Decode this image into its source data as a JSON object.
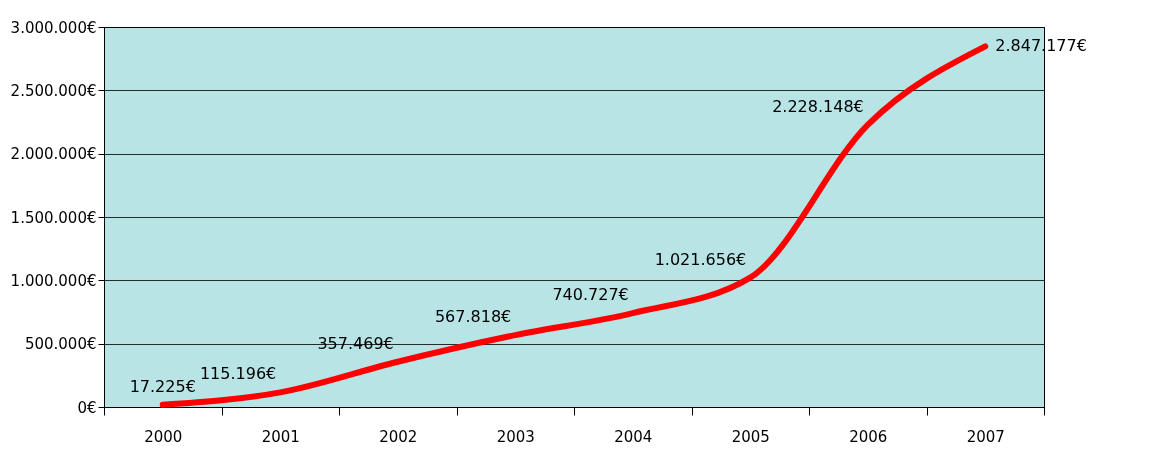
{
  "chart_data": {
    "type": "line",
    "categories": [
      "2000",
      "2001",
      "2002",
      "2003",
      "2004",
      "2005",
      "2006",
      "2007"
    ],
    "series": [
      {
        "color": "#ff0000",
        "values": [
          17225,
          115196,
          357469,
          567818,
          740727,
          1021656,
          2228148,
          2847177
        ],
        "value_labels": [
          "17.225€",
          "115.196€",
          "357.469€",
          "567.818€",
          "740.727€",
          "1.021.656€",
          "2.228.148€",
          "2.847.177€"
        ]
      }
    ],
    "ylim": [
      0,
      3000000
    ],
    "yticks": [
      {
        "value": 0,
        "label": "0€"
      },
      {
        "value": 500000,
        "label": "500.000€"
      },
      {
        "value": 1000000,
        "label": "1.000.000€"
      },
      {
        "value": 1500000,
        "label": "1.500.000€"
      },
      {
        "value": 2000000,
        "label": "2.000.000€"
      },
      {
        "value": 2500000,
        "label": "2.500.000€"
      },
      {
        "value": 3000000,
        "label": "3.000.000€"
      }
    ],
    "grid": "y",
    "marker": "none",
    "line_style": "solid"
  }
}
